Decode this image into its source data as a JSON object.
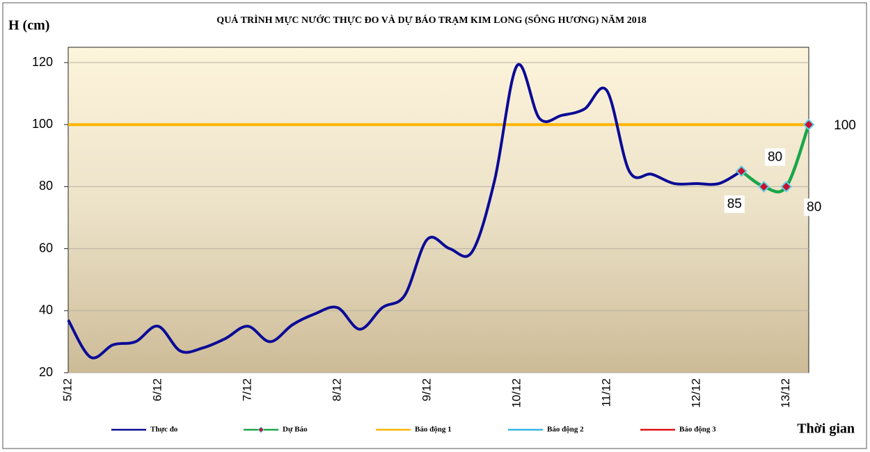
{
  "chart_data": {
    "type": "line",
    "title": "QUÁ TRÌNH MỰC NƯỚC THỰC ĐO VÀ DỰ BÁO TRẠM KIM LONG (SÔNG HƯƠNG) NĂM  2018",
    "y_label": "H (cm)",
    "x_label": "Thời gian",
    "categories": [
      "5/12",
      null,
      null,
      null,
      "6/12",
      null,
      null,
      null,
      "7/12",
      null,
      null,
      null,
      "8/12",
      null,
      null,
      null,
      "9/12",
      null,
      null,
      null,
      "10/12",
      null,
      null,
      null,
      "11/12",
      null,
      null,
      null,
      "12/12",
      null,
      null,
      null,
      "13/12",
      null
    ],
    "series": [
      {
        "name": "Thực đo",
        "color": "#0a0a96",
        "values": [
          37,
          25,
          29,
          30,
          35,
          27,
          28,
          31,
          35,
          30,
          35.5,
          39,
          41,
          34,
          41,
          45,
          63,
          60,
          59,
          82,
          119,
          102,
          103,
          105,
          111,
          85,
          84,
          81,
          81,
          81,
          85,
          null,
          null,
          null
        ]
      },
      {
        "name": "Dự Báo",
        "color": "#1aa64a",
        "marker": "diamond",
        "data_labels": true,
        "values": [
          null,
          null,
          null,
          null,
          null,
          null,
          null,
          null,
          null,
          null,
          null,
          null,
          null,
          null,
          null,
          null,
          null,
          null,
          null,
          null,
          null,
          null,
          null,
          null,
          null,
          null,
          null,
          null,
          null,
          null,
          85,
          80,
          80,
          100
        ]
      }
    ],
    "alarms": [
      {
        "name": "Báo động 1",
        "color": "#ffb400",
        "value": 100
      },
      {
        "name": "Báo động 2",
        "color": "#33b5e5"
      },
      {
        "name": "Báo động 3",
        "color": "#e01010"
      }
    ],
    "ylim": [
      20,
      120
    ],
    "yticks": [
      20,
      40,
      60,
      80,
      100,
      120
    ],
    "grid": true
  }
}
